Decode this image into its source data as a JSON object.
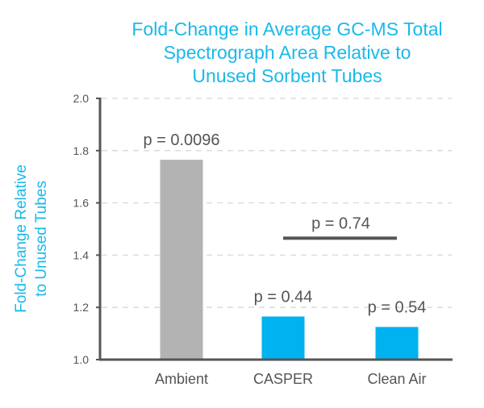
{
  "chart_data": {
    "type": "bar",
    "title_lines": [
      "Fold-Change in Average GC-MS Total",
      "Spectrograph Area Relative to",
      "Unused Sorbent Tubes"
    ],
    "ylabel_lines": [
      "Fold-Change Relative",
      "to Unused Tubes"
    ],
    "xlabel": "",
    "categories": [
      "Ambient",
      "CASPER",
      "Clean Air"
    ],
    "values": [
      1.765,
      1.165,
      1.125
    ],
    "bar_colors": [
      "#b3b3b3",
      "#00b2f0",
      "#00b2f0"
    ],
    "ylim": [
      1.0,
      2.0
    ],
    "yticks": [
      "1.0",
      "1.2",
      "1.4",
      "1.6",
      "1.8",
      "2.0"
    ],
    "grid": true,
    "annotations": {
      "ambient": "p = 0.0096",
      "casper": "p = 0.44",
      "clean_air": "p = 0.54",
      "bracket": "p = 0.74"
    },
    "bracket_from": "CASPER",
    "bracket_to": "Clean Air",
    "bracket_value": 1.465,
    "colors": {
      "title": "#19b9ea",
      "axis": "#555555",
      "text": "#555555"
    }
  }
}
